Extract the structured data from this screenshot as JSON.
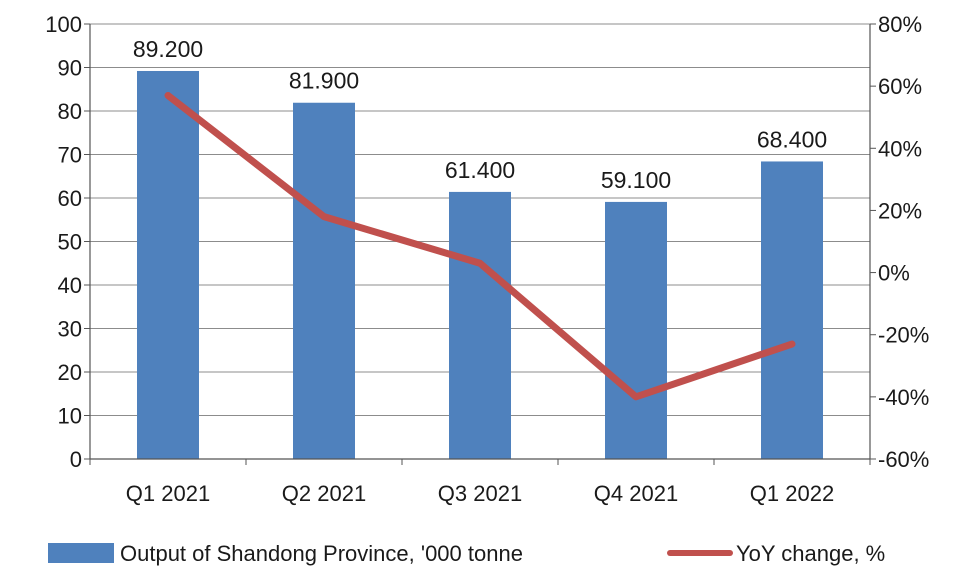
{
  "chart_data": {
    "type": "bar",
    "categories": [
      "Q1 2021",
      "Q2 2021",
      "Q3 2021",
      "Q4 2021",
      "Q1 2022"
    ],
    "series": [
      {
        "name": "Output of Shandong Province, '000 tonne",
        "type": "bar",
        "axis": "left",
        "values": [
          89.2,
          81.9,
          61.4,
          59.1,
          68.4
        ],
        "data_labels": [
          "89.200",
          "81.900",
          "61.400",
          "59.100",
          "68.400"
        ],
        "color": "#4f81bd"
      },
      {
        "name": "YoY change, %",
        "type": "line",
        "axis": "right",
        "values": [
          57,
          18,
          3,
          -40,
          -23
        ],
        "color": "#c0504d"
      }
    ],
    "y_left": {
      "ylim": [
        0,
        100
      ],
      "ticks": [
        "0",
        "10",
        "20",
        "30",
        "40",
        "50",
        "60",
        "70",
        "80",
        "90",
        "100"
      ]
    },
    "y_right": {
      "ylim": [
        -60,
        80
      ],
      "ticks": [
        "-60%",
        "-40%",
        "-20%",
        "0%",
        "20%",
        "40%",
        "60%",
        "80%"
      ]
    },
    "grid": true,
    "legend_position": "bottom"
  }
}
